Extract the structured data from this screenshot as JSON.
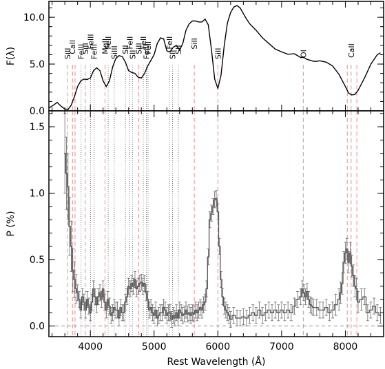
{
  "chart_data": {
    "type": "line",
    "x_range": [
      3350,
      8600
    ],
    "x_ticks": [
      4000,
      5000,
      6000,
      7000,
      8000
    ],
    "x_tick_labels": [
      "4000",
      "5000",
      "6000",
      "7000",
      "8000"
    ],
    "xlabel": "Rest Wavelength (Å)",
    "panels": [
      {
        "id": "flux",
        "ylabel": "F(λ)",
        "ylim": [
          0,
          11.7
        ],
        "y_ticks": [
          0,
          5,
          10
        ],
        "y_tick_labels": [
          "0.0",
          "5.0",
          "10.0"
        ],
        "series": [
          {
            "x": [
              3350,
              3420,
              3480,
              3540,
              3600,
              3650,
              3700,
              3750,
              3800,
              3850,
              3900,
              3950,
              4000,
              4050,
              4100,
              4150,
              4200,
              4250,
              4300,
              4350,
              4400,
              4450,
              4500,
              4550,
              4600,
              4650,
              4700,
              4750,
              4800,
              4850,
              4900,
              4950,
              5000,
              5050,
              5100,
              5150,
              5200,
              5250,
              5300,
              5350,
              5400,
              5450,
              5500,
              5550,
              5600,
              5650,
              5700,
              5750,
              5800,
              5850,
              5900,
              5950,
              6000,
              6050,
              6100,
              6150,
              6200,
              6250,
              6300,
              6350,
              6400,
              6450,
              6500,
              6600,
              6700,
              6800,
              6900,
              7000,
              7100,
              7200,
              7300,
              7350,
              7400,
              7450,
              7500,
              7550,
              7600,
              7700,
              7800,
              7900,
              8000,
              8050,
              8100,
              8150,
              8200,
              8300,
              8400,
              8500,
              8550
            ],
            "y": [
              0.3,
              0.6,
              0.9,
              0.5,
              0.2,
              0.15,
              0.6,
              1.5,
              2.6,
              3.2,
              3.4,
              3.35,
              3.5,
              4.3,
              4.6,
              4.3,
              3.2,
              2.6,
              3.2,
              4.7,
              5.6,
              5.9,
              5.8,
              5.2,
              4.3,
              4.1,
              4.0,
              3.6,
              3.5,
              4.0,
              4.8,
              5.4,
              6.0,
              7.2,
              7.8,
              7.7,
              6.4,
              6.3,
              6.8,
              7.0,
              6.5,
              7.2,
              8.6,
              9.3,
              9.6,
              9.6,
              9.5,
              9.5,
              9.8,
              9.2,
              6.5,
              3.4,
              2.4,
              3.8,
              7.0,
              9.4,
              10.5,
              11.1,
              11.25,
              11.0,
              10.4,
              9.8,
              9.3,
              8.6,
              7.8,
              7.2,
              6.6,
              6.3,
              6.05,
              6.1,
              5.7,
              5.7,
              5.5,
              5.4,
              5.3,
              5.3,
              5.35,
              5.2,
              4.8,
              3.9,
              2.6,
              1.9,
              1.7,
              1.75,
              2.2,
              3.5,
              5.0,
              6.0,
              6.2
            ]
          }
        ]
      },
      {
        "id": "polarization",
        "ylabel": "P (%)",
        "ylim": [
          -0.08,
          1.62
        ],
        "y_ticks": [
          0.0,
          0.5,
          1.0,
          1.5
        ],
        "y_tick_labels": [
          "0.0",
          "0.5",
          "1.0",
          "1.5"
        ],
        "baseline": 0,
        "series": [
          {
            "x": [
              3600,
              3625,
              3650,
              3675,
              3700,
              3725,
              3750,
              3775,
              3800,
              3825,
              3850,
              3875,
              3900,
              3925,
              3950,
              3975,
              4000,
              4025,
              4050,
              4075,
              4100,
              4125,
              4150,
              4175,
              4200,
              4225,
              4250,
              4275,
              4300,
              4325,
              4350,
              4375,
              4400,
              4425,
              4450,
              4475,
              4500,
              4525,
              4550,
              4575,
              4600,
              4625,
              4650,
              4675,
              4700,
              4725,
              4750,
              4775,
              4800,
              4825,
              4850,
              4875,
              4900,
              4925,
              4950,
              4975,
              5000,
              5025,
              5050,
              5075,
              5100,
              5125,
              5150,
              5175,
              5200,
              5225,
              5250,
              5275,
              5300,
              5325,
              5350,
              5375,
              5400,
              5425,
              5450,
              5475,
              5500,
              5525,
              5550,
              5575,
              5600,
              5625,
              5650,
              5675,
              5700,
              5725,
              5750,
              5775,
              5800,
              5825,
              5850,
              5875,
              5900,
              5925,
              5950,
              5975,
              6000,
              6025,
              6050,
              6075,
              6100,
              6125,
              6150,
              6175,
              6200,
              6250,
              6300,
              6350,
              6400,
              6450,
              6500,
              6550,
              6600,
              6650,
              6700,
              6750,
              6800,
              6850,
              6900,
              6950,
              7000,
              7050,
              7100,
              7150,
              7200,
              7250,
              7300,
              7325,
              7350,
              7375,
              7400,
              7425,
              7450,
              7475,
              7500,
              7550,
              7600,
              7650,
              7700,
              7750,
              7800,
              7850,
              7900,
              7925,
              7950,
              7975,
              8000,
              8025,
              8050,
              8075,
              8100,
              8125,
              8150,
              8175,
              8200,
              8250,
              8300,
              8350,
              8400,
              8450,
              8500,
              8550
            ],
            "y": [
              1.3,
              1.15,
              1.05,
              0.75,
              0.6,
              0.42,
              0.35,
              0.28,
              0.25,
              0.2,
              0.12,
              0.22,
              0.18,
              0.12,
              0.2,
              0.15,
              0.1,
              0.18,
              0.28,
              0.22,
              0.16,
              0.22,
              0.25,
              0.2,
              0.28,
              0.18,
              0.12,
              0.2,
              0.15,
              0.08,
              0.1,
              0.14,
              0.12,
              0.12,
              0.06,
              0.14,
              0.1,
              0.1,
              0.18,
              0.22,
              0.3,
              0.28,
              0.32,
              0.3,
              0.35,
              0.28,
              0.3,
              0.32,
              0.33,
              0.3,
              0.32,
              0.25,
              0.2,
              0.12,
              0.14,
              0.1,
              0.08,
              0.12,
              0.06,
              0.08,
              0.1,
              0.1,
              0.14,
              0.12,
              0.08,
              0.1,
              0.1,
              0.05,
              0.08,
              0.06,
              0.1,
              0.06,
              0.12,
              0.1,
              0.08,
              0.09,
              0.12,
              0.09,
              0.1,
              0.08,
              0.1,
              0.09,
              0.12,
              0.1,
              0.12,
              0.14,
              0.12,
              0.16,
              0.18,
              0.28,
              0.52,
              0.8,
              0.85,
              0.9,
              0.95,
              0.96,
              0.86,
              0.6,
              0.35,
              0.22,
              0.15,
              0.12,
              0.1,
              0.08,
              0.05,
              0.08,
              0.06,
              0.06,
              0.07,
              0.06,
              0.08,
              0.1,
              0.08,
              0.12,
              0.08,
              0.1,
              0.12,
              0.1,
              0.12,
              0.1,
              0.12,
              0.1,
              0.12,
              0.1,
              0.15,
              0.2,
              0.22,
              0.28,
              0.25,
              0.22,
              0.26,
              0.2,
              0.16,
              0.15,
              0.14,
              0.14,
              0.12,
              0.12,
              0.14,
              0.1,
              0.12,
              0.16,
              0.2,
              0.25,
              0.32,
              0.48,
              0.55,
              0.58,
              0.48,
              0.55,
              0.45,
              0.38,
              0.3,
              0.28,
              0.18,
              0.2,
              0.22,
              0.1,
              0.12,
              0.15,
              0.1,
              0.08
            ]
          }
        ]
      }
    ],
    "lines": [
      {
        "x": 3640,
        "label": "SiII",
        "style": "dashed-red"
      },
      {
        "x": 3720,
        "label": "CaII",
        "style": "dashed-red"
      },
      {
        "x": 3760,
        "label": "",
        "style": "dashed-red"
      },
      {
        "x": 3855,
        "label": "FeIII",
        "style": "dotted"
      },
      {
        "x": 3920,
        "label": "SiII",
        "style": "dashed-red"
      },
      {
        "x": 4005,
        "label": "FeIII",
        "style": "dotted"
      },
      {
        "x": 4060,
        "label": "FeIII",
        "style": "dotted"
      },
      {
        "x": 4230,
        "label": "MgII",
        "style": "dashed-red"
      },
      {
        "x": 4280,
        "label": "FeII",
        "style": "dotted"
      },
      {
        "x": 4375,
        "label": "SiIII",
        "style": "dotted"
      },
      {
        "x": 4550,
        "label": "SII",
        "style": "dotted"
      },
      {
        "x": 4620,
        "label": "FeII",
        "style": "dotted"
      },
      {
        "x": 4660,
        "label": "SII",
        "style": "dotted"
      },
      {
        "x": 4760,
        "label": "SiII",
        "style": "dashed-red"
      },
      {
        "x": 4830,
        "label": "FeII",
        "style": "dotted"
      },
      {
        "x": 4880,
        "label": "FeIII",
        "style": "dotted"
      },
      {
        "x": 4905,
        "label": "FeII",
        "style": "dotted"
      },
      {
        "x": 5240,
        "label": "FeII",
        "style": "dotted"
      },
      {
        "x": 5290,
        "label": "SII",
        "style": "dotted"
      },
      {
        "x": 5380,
        "label": "SII",
        "style": "dotted"
      },
      {
        "x": 5630,
        "label": "SiII",
        "style": "dashed-red"
      },
      {
        "x": 6000,
        "label": "SiII",
        "style": "dashed-red"
      },
      {
        "x": 7340,
        "label": "OI",
        "style": "dashed-red"
      },
      {
        "x": 8030,
        "label": "",
        "style": "dashed-red"
      },
      {
        "x": 8090,
        "label": "CaII",
        "style": "dashed-red"
      },
      {
        "x": 8180,
        "label": "",
        "style": "dashed-red"
      }
    ]
  }
}
